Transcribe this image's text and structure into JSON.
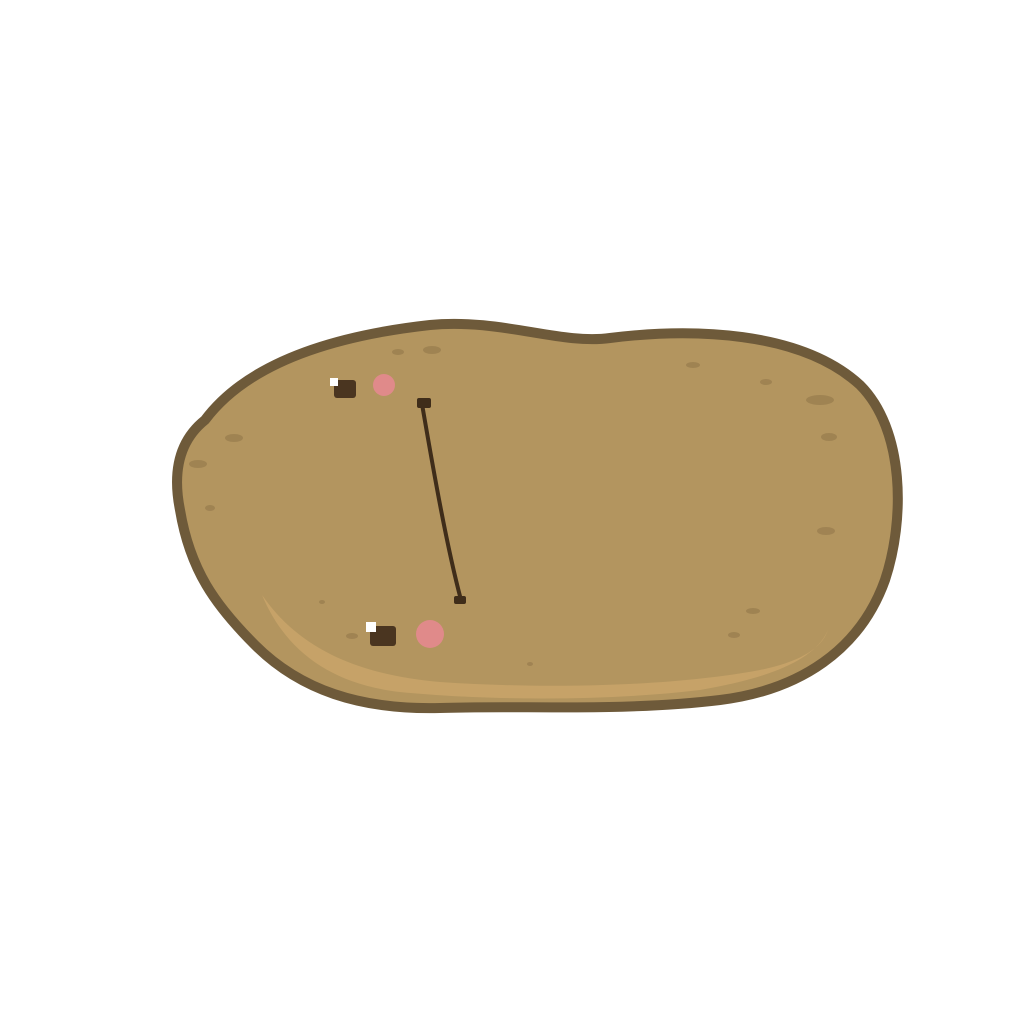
{
  "scene": {
    "subject": "cartoon-potato",
    "colors": {
      "background": "#ffffff",
      "skin": "#b3955f",
      "outline": "#6e5a3a",
      "highlight": "#c9a56a",
      "speckle": "#8f7548",
      "eye": "#4a3520",
      "eye_shine": "#ffffff",
      "blush": "#e08a8a",
      "mouth": "#3f2d1a"
    }
  }
}
